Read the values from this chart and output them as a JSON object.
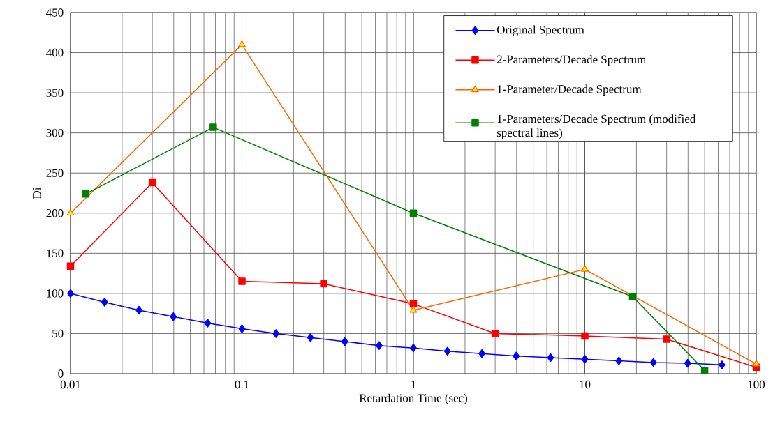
{
  "chart_data": {
    "type": "line",
    "xlabel": "Retardation Time (sec)",
    "ylabel": "Di",
    "log": "x",
    "xlim": [
      0.01,
      100
    ],
    "xticks": [
      0.01,
      0.1,
      1,
      10,
      100
    ],
    "ylim": [
      0,
      450
    ],
    "yticks": [
      0,
      50,
      100,
      150,
      200,
      250,
      300,
      350,
      400,
      450
    ],
    "grid": true,
    "legend": "top right",
    "series": [
      {
        "name": "Original Spectrum",
        "color": "#0000ff",
        "marker": "diamond",
        "x": [
          0.01,
          0.0158,
          0.0251,
          0.0398,
          0.0631,
          0.1,
          0.158,
          0.251,
          0.398,
          0.631,
          1,
          1.58,
          2.51,
          3.98,
          6.31,
          10,
          15.8,
          25.1,
          39.8,
          63.1
        ],
        "values": [
          100,
          89,
          79,
          71,
          63,
          56,
          50,
          45,
          40,
          35,
          32,
          28,
          25,
          22,
          20,
          18,
          16,
          14,
          13,
          11
        ]
      },
      {
        "name": "2-Parameters/Decade Spectrum",
        "color": "#ff0000",
        "marker": "square",
        "x": [
          0.01,
          0.03,
          0.1,
          0.3,
          1,
          3,
          10,
          30,
          100
        ],
        "values": [
          134,
          238,
          115,
          112,
          87,
          50,
          47,
          43,
          8
        ]
      },
      {
        "name": "1-Parameter/Decade Spectrum",
        "color": "#ff6600",
        "marker": "triangle",
        "x": [
          0.01,
          0.1,
          1,
          10,
          100
        ],
        "values": [
          200,
          410,
          79,
          130,
          12
        ]
      },
      {
        "name": "1-Parameters/Decade Spectrum (modified spectral lines)",
        "color": "#008000",
        "marker": "square",
        "x": [
          0.0123,
          0.068,
          1,
          19,
          50
        ],
        "values": [
          224,
          307,
          200,
          96,
          4
        ]
      }
    ]
  }
}
